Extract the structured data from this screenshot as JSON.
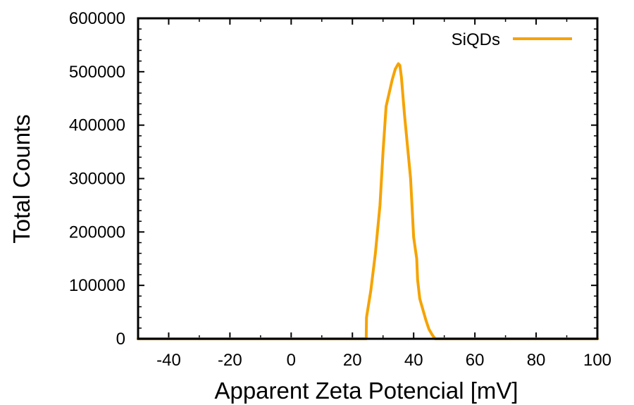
{
  "chart_data": {
    "type": "line",
    "title": "",
    "xlabel": "Apparent Zeta Potencial [mV]",
    "ylabel": "Total Counts",
    "xlim": [
      -50,
      100
    ],
    "ylim": [
      0,
      600000
    ],
    "xticks": [
      -40,
      -20,
      0,
      20,
      40,
      60,
      80,
      100
    ],
    "yticks": [
      0,
      100000,
      200000,
      300000,
      400000,
      500000,
      600000
    ],
    "grid": false,
    "legend": "top-right",
    "series": [
      {
        "name": "SiQDs",
        "color": "#f5a300",
        "points": [
          [
            -50,
            0
          ],
          [
            24.5,
            0
          ],
          [
            24.6,
            40000
          ],
          [
            26,
            90000
          ],
          [
            27.5,
            160000
          ],
          [
            29,
            250000
          ],
          [
            30,
            350000
          ],
          [
            31,
            435000
          ],
          [
            32,
            460000
          ],
          [
            33,
            485000
          ],
          [
            34,
            505000
          ],
          [
            35,
            515000
          ],
          [
            35.5,
            512000
          ],
          [
            36,
            490000
          ],
          [
            37,
            420000
          ],
          [
            38,
            360000
          ],
          [
            39,
            300000
          ],
          [
            40,
            190000
          ],
          [
            41,
            150000
          ],
          [
            41.3,
            110000
          ],
          [
            42,
            75000
          ],
          [
            43,
            55000
          ],
          [
            44,
            35000
          ],
          [
            45,
            18000
          ],
          [
            46,
            8000
          ],
          [
            47,
            0
          ],
          [
            100,
            0
          ]
        ]
      }
    ]
  }
}
